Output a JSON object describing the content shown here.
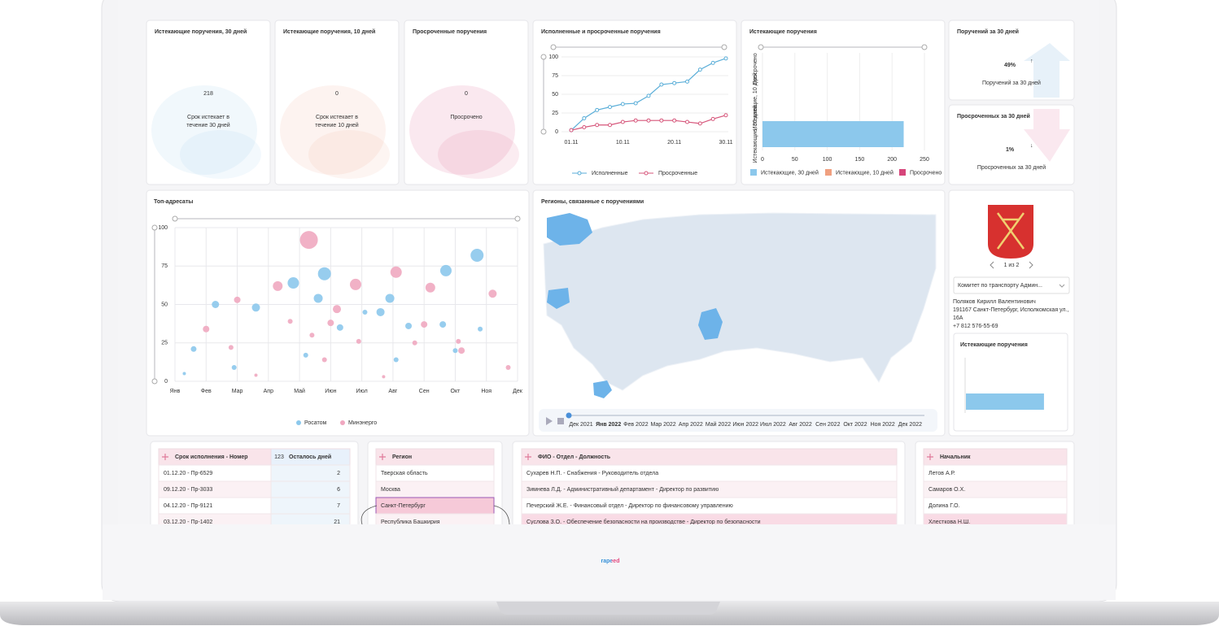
{
  "kpi_cards": [
    {
      "title": "Истекающие поручения, 30 дней",
      "value": 218,
      "caption_lines": [
        "Срок истекает в",
        "течение 30 дней"
      ],
      "color": "#8cc4e8"
    },
    {
      "title": "Истекающие поручения, 10 дней",
      "value": 0,
      "caption_lines": [
        "Срок истекает в",
        "течение 10 дней"
      ],
      "color": "#f0a080"
    },
    {
      "title": "Просроченные поручения",
      "value": 0,
      "caption_lines": [
        "Просрочено"
      ],
      "color": "#d6457a"
    }
  ],
  "percent_cards": [
    {
      "title": "Поручений за 30 дней",
      "value": 49,
      "value_label": "49%",
      "arrow": "↑",
      "caption": "Поручений за 30 дней",
      "color": "#3a8fd0"
    },
    {
      "title": "Просроченных за 30 дней",
      "value": 1,
      "value_label": "1%",
      "arrow": "↓",
      "caption": "Просроченных за 30 дней",
      "color": "#d6457a"
    }
  ],
  "chart_data": [
    {
      "type": "line",
      "title": "Исполненные и просроченные поручения",
      "categories": [
        "01.11",
        null,
        null,
        null,
        "10.11",
        null,
        null,
        null,
        "20.11",
        null,
        null,
        null,
        "30.11"
      ],
      "series": [
        {
          "name": "Исполненные",
          "color": "#5aaed8",
          "values": [
            2,
            18,
            29,
            33,
            37,
            38,
            48,
            63,
            65,
            67,
            83,
            92,
            98
          ]
        },
        {
          "name": "Просроченные",
          "color": "#d6557a",
          "values": [
            2,
            6,
            9,
            9,
            13,
            15,
            15,
            15,
            15,
            13,
            11,
            17,
            22
          ]
        }
      ],
      "ylim": [
        0,
        100
      ],
      "yticks": [
        0,
        25,
        50,
        75,
        100
      ],
      "grid": true
    },
    {
      "type": "hbar",
      "title": "Истекающие поручения",
      "categories": [
        "Просрочено",
        "Истекающие, 10 дней",
        "Истекающие, 30 дней"
      ],
      "values": [
        0,
        0,
        218
      ],
      "colors": [
        "#d6457a",
        "#f0a080",
        "#8cc8ec"
      ],
      "xlim": [
        0,
        250
      ],
      "xticks": [
        0,
        50,
        100,
        150,
        200,
        250
      ],
      "grid": true
    },
    {
      "type": "bubble",
      "title": "Топ-адресаты",
      "series": [
        {
          "name": "Росатом",
          "color": "#8cc8ec",
          "x": [
            0.3,
            0.6,
            1.3,
            1.9,
            2.6,
            3.8,
            4.2,
            4.6,
            4.8,
            5.3,
            6.1,
            6.6,
            6.9,
            7.1,
            7.5,
            8.6,
            8.7,
            9.0,
            9.7,
            9.8
          ],
          "values": [
            5,
            21,
            50,
            9,
            48,
            64,
            17,
            54,
            70,
            35,
            45,
            45,
            54,
            14,
            36,
            37,
            72,
            20,
            82,
            34
          ],
          "sizes": [
            2,
            3.5,
            4.5,
            3,
            5,
            7,
            3,
            5.5,
            8,
            4,
            3,
            5,
            5.5,
            3,
            4,
            4,
            7,
            3,
            8,
            3
          ]
        },
        {
          "name": "Минэнерго",
          "color": "#f0a8c0",
          "x": [
            1.0,
            1.8,
            2.0,
            2.6,
            3.3,
            3.7,
            4.3,
            4.4,
            4.8,
            5.0,
            5.2,
            5.8,
            5.9,
            6.7,
            7.1,
            7.7,
            8.0,
            8.2,
            9.1,
            9.2,
            10.2,
            10.7
          ],
          "values": [
            34,
            22,
            53,
            4,
            62,
            39,
            92,
            30,
            14,
            38,
            47,
            63,
            26,
            3,
            71,
            25,
            37,
            61,
            26,
            20,
            57,
            9
          ],
          "sizes": [
            4,
            3,
            4,
            2,
            6,
            3,
            11,
            3,
            3,
            4,
            5,
            7,
            3,
            2,
            7,
            3,
            4,
            6,
            3,
            4,
            5,
            3
          ]
        }
      ],
      "xlim": [
        0,
        11
      ],
      "xticks": [
        {
          "value": 0,
          "label": "Янв"
        },
        {
          "value": 1,
          "label": "Фев"
        },
        {
          "value": 2,
          "label": "Мар"
        },
        {
          "value": 3,
          "label": "Апр"
        },
        {
          "value": 4,
          "label": "Май"
        },
        {
          "value": 5,
          "label": "Июн"
        },
        {
          "value": 6,
          "label": "Июл"
        },
        {
          "value": 7,
          "label": "Авг"
        },
        {
          "value": 8,
          "label": "Сен"
        },
        {
          "value": 9,
          "label": "Окт"
        },
        {
          "value": 10,
          "label": "Ноя"
        },
        {
          "value": 11,
          "label": "Дек"
        }
      ],
      "ylim": [
        0,
        100
      ],
      "yticks": [
        0,
        25,
        50,
        75,
        100
      ],
      "grid": true
    },
    {
      "type": "hbar",
      "title": "Истекающие поручения",
      "values": [
        218
      ],
      "colors": [
        "#8cc8ec"
      ],
      "xlim": [
        0,
        250
      ]
    }
  ],
  "map": {
    "title": "Регионы, связанные с поручениями",
    "timeline": [
      "Дек 2021",
      "Янв 2022",
      "Фев 2022",
      "Мар 2022",
      "Апр 2022",
      "Май 2022",
      "Июн 2022",
      "Июл 2022",
      "Авг 2022",
      "Сен 2022",
      "Окт 2022",
      "Ноя 2022",
      "Дек 2022"
    ],
    "selected": 1
  },
  "info_panel": {
    "pager": "1 из 2",
    "dropdown": "Комитет по транспорту Админ...",
    "name": "Поляков Кирилл Валентинович",
    "address_lines": [
      "191167 Санкт-Петербург, Исполкомская ул.,",
      "16А"
    ],
    "phone": "+7 812 576-55-69"
  },
  "tables": [
    {
      "columns": [
        "Срок исполнения - Номер",
        "Осталось дней"
      ],
      "badge": "123",
      "rows": [
        [
          "01.12.20 - Пр-6529",
          2
        ],
        [
          "09.12.20 - Пр-3033",
          6
        ],
        [
          "04.12.20 - Пр-9121",
          7
        ],
        [
          "03.12.20 - Пр-1402",
          21
        ]
      ]
    },
    {
      "columns": [
        "Регион"
      ],
      "selected": 2,
      "rows": [
        [
          "Тверская область"
        ],
        [
          "Москва"
        ],
        [
          "Санкт-Петербург"
        ],
        [
          "Республика Башкирия"
        ]
      ]
    },
    {
      "columns": [
        "ФИО - Отдел - Должность"
      ],
      "selected": 3,
      "rows": [
        [
          "Сухарев Н.П. - Снабжения - Руководитель отдела"
        ],
        [
          "Зимнева Л.Д. - Административный департамент - Директор по развитию"
        ],
        [
          "Печерский Ж.Е. - Финансовый отдел - Директор по финансовому управлению"
        ],
        [
          "Суслова З.О. - Обеспечение безопасности на производстве - Директор по безопасности"
        ]
      ]
    },
    {
      "columns": [
        "Начальник"
      ],
      "selected": 3,
      "rows": [
        [
          "Летов А.Р."
        ],
        [
          "Самаров О.Х."
        ],
        [
          "Долина Г.О."
        ],
        [
          "Хлесткова Н.Ш."
        ]
      ]
    }
  ],
  "logo": "rapeed"
}
